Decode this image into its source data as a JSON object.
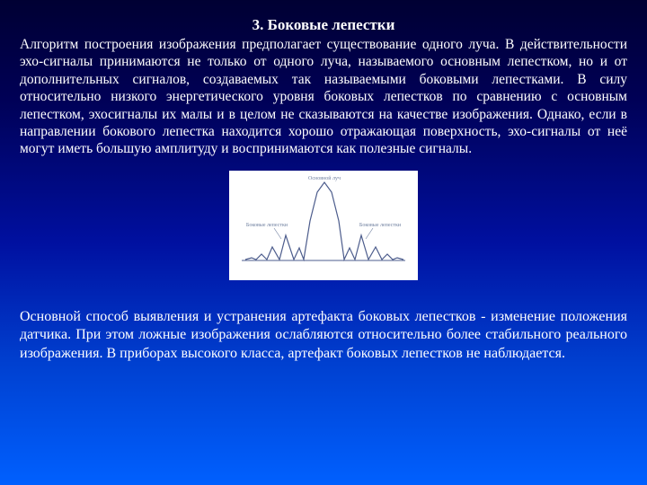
{
  "title": "3. Боковые лепестки",
  "paragraph_top": "Алгоритм построения изображения предполагает существование одного луча. В действительности эхо-сигналы принимаются не только от одного луча, называемого основным лепестком, но и от дополнительных сигналов, создаваемых так называемыми боковыми лепестками. В силу относительно низкого энергетического уровня боковых лепестков по сравнению с основным лепестком, эхосигналы их малы и в целом не сказываются на качестве изображения. Однако, если в направлении бокового лепестка находится хорошо отражающая поверхность, эхо-сигналы от неё могут иметь большую амплитуду и воспринимаются как полезные сигналы.",
  "paragraph_bottom": "Основной способ выявления и устранения артефакта боковых лепестков - изменение положения датчика. При этом ложные изображения ослабляются относительно более стабильного реального изображения. В приборах высокого класса, артефакт боковых лепестков не наблюдается.",
  "figure": {
    "type": "line",
    "background_color": "#ffffff",
    "axis_color": "#4c5c8c",
    "curve_color": "#4c5c8c",
    "line_width": 1.2,
    "labels": {
      "main": "Основной луч",
      "left": "Боковые лепестки",
      "right": "Боковые лепестки"
    },
    "label_color": "#7080a0",
    "baseline_y": 100,
    "xlim": [
      15,
      195
    ],
    "points": [
      [
        18,
        99
      ],
      [
        25,
        97
      ],
      [
        30,
        99
      ],
      [
        36,
        93
      ],
      [
        42,
        99
      ],
      [
        48,
        85
      ],
      [
        56,
        99
      ],
      [
        63,
        72
      ],
      [
        72,
        99
      ],
      [
        78,
        86
      ],
      [
        83,
        99
      ],
      [
        90,
        56
      ],
      [
        98,
        24
      ],
      [
        106,
        13
      ],
      [
        114,
        24
      ],
      [
        122,
        56
      ],
      [
        128,
        99
      ],
      [
        134,
        86
      ],
      [
        140,
        99
      ],
      [
        147,
        72
      ],
      [
        155,
        99
      ],
      [
        163,
        85
      ],
      [
        170,
        99
      ],
      [
        176,
        93
      ],
      [
        182,
        99
      ],
      [
        187,
        97
      ],
      [
        194,
        99
      ]
    ]
  },
  "colors": {
    "text": "#ffffff",
    "bg_top": "#000033",
    "bg_bottom": "#0060ff"
  }
}
